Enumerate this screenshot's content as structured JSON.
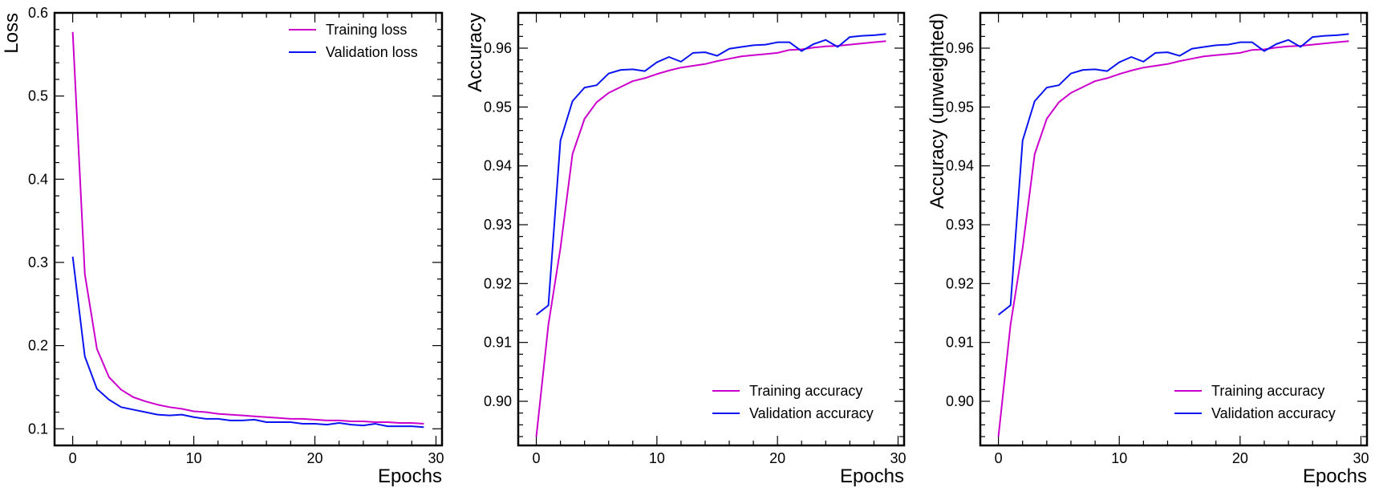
{
  "colors": {
    "training": "#cc00cc",
    "validation": "#0a14f0",
    "axes": "#000000",
    "background": "#ffffff"
  },
  "chart_data": [
    {
      "type": "line",
      "xlabel": "Epochs",
      "ylabel": "Loss",
      "xlim": [
        -1.5,
        30.5
      ],
      "ylim": [
        0.08,
        0.6
      ],
      "xticks": [
        0,
        10,
        20,
        30
      ],
      "xtick_labels": [
        "0",
        "10",
        "20",
        "30"
      ],
      "yticks": [
        0.1,
        0.2,
        0.3,
        0.4,
        0.5,
        0.6
      ],
      "ytick_labels": [
        "0.1",
        "0.2",
        "0.3",
        "0.4",
        "0.5",
        "0.6"
      ],
      "legend_position": "top-right",
      "grid": false,
      "x": [
        0,
        1,
        2,
        3,
        4,
        5,
        6,
        7,
        8,
        9,
        10,
        11,
        12,
        13,
        14,
        15,
        16,
        17,
        18,
        19,
        20,
        21,
        22,
        23,
        24,
        25,
        26,
        27,
        28,
        29
      ],
      "series": [
        {
          "name": "Training loss",
          "color_key": "training",
          "values": [
            0.577,
            0.286,
            0.196,
            0.162,
            0.147,
            0.138,
            0.133,
            0.129,
            0.126,
            0.124,
            0.121,
            0.12,
            0.118,
            0.117,
            0.116,
            0.115,
            0.114,
            0.113,
            0.112,
            0.112,
            0.111,
            0.11,
            0.11,
            0.109,
            0.109,
            0.108,
            0.108,
            0.107,
            0.107,
            0.106
          ]
        },
        {
          "name": "Validation loss",
          "color_key": "validation",
          "values": [
            0.307,
            0.187,
            0.148,
            0.135,
            0.126,
            0.123,
            0.12,
            0.117,
            0.116,
            0.117,
            0.114,
            0.112,
            0.112,
            0.11,
            0.11,
            0.111,
            0.108,
            0.108,
            0.108,
            0.106,
            0.106,
            0.105,
            0.107,
            0.105,
            0.104,
            0.106,
            0.103,
            0.103,
            0.103,
            0.102
          ]
        }
      ]
    },
    {
      "type": "line",
      "xlabel": "Epochs",
      "ylabel": "Accuracy",
      "xlim": [
        -1.5,
        30.5
      ],
      "ylim": [
        0.8925,
        0.966
      ],
      "xticks": [
        0,
        10,
        20,
        30
      ],
      "xtick_labels": [
        "0",
        "10",
        "20",
        "30"
      ],
      "yticks": [
        0.9,
        0.91,
        0.92,
        0.93,
        0.94,
        0.95,
        0.96
      ],
      "ytick_labels": [
        "0.90",
        "0.91",
        "0.92",
        "0.93",
        "0.94",
        "0.95",
        "0.96"
      ],
      "legend_position": "bottom-right",
      "grid": false,
      "x": [
        0,
        1,
        2,
        3,
        4,
        5,
        6,
        7,
        8,
        9,
        10,
        11,
        12,
        13,
        14,
        15,
        16,
        17,
        18,
        19,
        20,
        21,
        22,
        23,
        24,
        25,
        26,
        27,
        28,
        29
      ],
      "series": [
        {
          "name": "Training accuracy",
          "color_key": "training",
          "values": [
            0.894,
            0.913,
            0.926,
            0.942,
            0.948,
            0.9508,
            0.9524,
            0.9534,
            0.9544,
            0.9549,
            0.9556,
            0.9562,
            0.9567,
            0.957,
            0.9573,
            0.9578,
            0.9582,
            0.9586,
            0.9588,
            0.959,
            0.9592,
            0.9597,
            0.9598,
            0.9601,
            0.9603,
            0.9604,
            0.9606,
            0.9608,
            0.961,
            0.9612
          ]
        },
        {
          "name": "Validation accuracy",
          "color_key": "validation",
          "values": [
            0.9147,
            0.9163,
            0.9443,
            0.951,
            0.9533,
            0.9537,
            0.9557,
            0.9563,
            0.9564,
            0.9561,
            0.9576,
            0.9585,
            0.9577,
            0.9592,
            0.9593,
            0.9587,
            0.9599,
            0.9602,
            0.9605,
            0.9606,
            0.961,
            0.961,
            0.9595,
            0.9607,
            0.9614,
            0.9602,
            0.9619,
            0.9621,
            0.9622,
            0.9624
          ]
        }
      ]
    },
    {
      "type": "line",
      "xlabel": "Epochs",
      "ylabel": "Accuracy (unweighted)",
      "xlim": [
        -1.5,
        30.5
      ],
      "ylim": [
        0.8925,
        0.966
      ],
      "xticks": [
        0,
        10,
        20,
        30
      ],
      "xtick_labels": [
        "0",
        "10",
        "20",
        "30"
      ],
      "yticks": [
        0.9,
        0.91,
        0.92,
        0.93,
        0.94,
        0.95,
        0.96
      ],
      "ytick_labels": [
        "0.90",
        "0.91",
        "0.92",
        "0.93",
        "0.94",
        "0.95",
        "0.96"
      ],
      "legend_position": "bottom-right",
      "grid": false,
      "x": [
        0,
        1,
        2,
        3,
        4,
        5,
        6,
        7,
        8,
        9,
        10,
        11,
        12,
        13,
        14,
        15,
        16,
        17,
        18,
        19,
        20,
        21,
        22,
        23,
        24,
        25,
        26,
        27,
        28,
        29
      ],
      "series": [
        {
          "name": "Training accuracy",
          "color_key": "training",
          "values": [
            0.894,
            0.913,
            0.926,
            0.942,
            0.948,
            0.9508,
            0.9524,
            0.9534,
            0.9544,
            0.9549,
            0.9556,
            0.9562,
            0.9567,
            0.957,
            0.9573,
            0.9578,
            0.9582,
            0.9586,
            0.9588,
            0.959,
            0.9592,
            0.9597,
            0.9598,
            0.9601,
            0.9603,
            0.9604,
            0.9606,
            0.9608,
            0.961,
            0.9612
          ]
        },
        {
          "name": "Validation accuracy",
          "color_key": "validation",
          "values": [
            0.9147,
            0.9163,
            0.9443,
            0.951,
            0.9533,
            0.9537,
            0.9557,
            0.9563,
            0.9564,
            0.9561,
            0.9576,
            0.9585,
            0.9577,
            0.9592,
            0.9593,
            0.9587,
            0.9599,
            0.9602,
            0.9605,
            0.9606,
            0.961,
            0.961,
            0.9595,
            0.9607,
            0.9614,
            0.9602,
            0.9619,
            0.9621,
            0.9622,
            0.9624
          ]
        }
      ]
    }
  ]
}
